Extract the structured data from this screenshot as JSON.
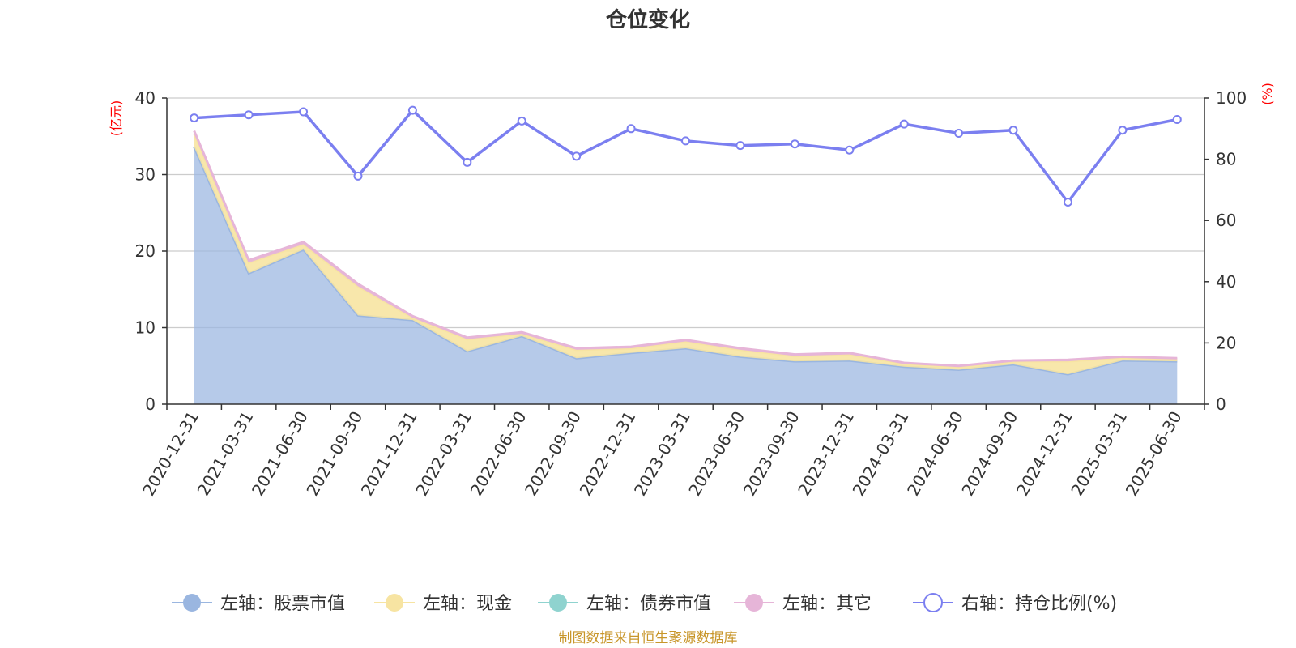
{
  "chart_data": {
    "type": "area",
    "title": "仓位变化",
    "source": "制图数据来自恒生聚源数据库",
    "left_axis": {
      "unit": "(亿元)",
      "ylim": [
        0,
        40
      ],
      "ticks": [
        "0",
        "10",
        "20",
        "30",
        "40"
      ]
    },
    "right_axis": {
      "unit": "(%)",
      "ylim": [
        0,
        100
      ],
      "ticks": [
        "0",
        "20",
        "40",
        "60",
        "80",
        "100"
      ]
    },
    "categories": [
      "2020-12-31",
      "2021-03-31",
      "2021-06-30",
      "2021-09-30",
      "2021-12-31",
      "2022-03-31",
      "2022-06-30",
      "2022-09-30",
      "2022-12-31",
      "2023-03-31",
      "2023-06-30",
      "2023-09-30",
      "2023-12-31",
      "2024-03-31",
      "2024-06-30",
      "2024-09-30",
      "2024-12-31",
      "2025-03-31",
      "2025-06-30"
    ],
    "grid": true,
    "legend_position": "bottom",
    "series": [
      {
        "name": "左轴：股票市值",
        "axis": "left",
        "kind": "area",
        "color": "#9ab6e0",
        "values": [
          33.6,
          17.1,
          20.2,
          11.6,
          11.0,
          6.9,
          8.9,
          6.0,
          6.7,
          7.3,
          6.2,
          5.6,
          5.7,
          4.9,
          4.5,
          5.2,
          3.9,
          5.7,
          5.6
        ]
      },
      {
        "name": "左轴：现金",
        "axis": "left",
        "kind": "area",
        "color": "#f7e4a2",
        "values": [
          1.8,
          1.4,
          0.7,
          3.8,
          0.3,
          1.6,
          0.3,
          1.1,
          0.6,
          0.9,
          0.9,
          0.7,
          0.8,
          0.4,
          0.4,
          0.4,
          1.7,
          0.4,
          0.3
        ]
      },
      {
        "name": "左轴：债券市值",
        "axis": "left",
        "kind": "area",
        "color": "#8fd3cf",
        "values": [
          0,
          0,
          0,
          0,
          0,
          0,
          0,
          0,
          0,
          0,
          0,
          0,
          0,
          0,
          0,
          0,
          0,
          0,
          0
        ]
      },
      {
        "name": "左轴：其它",
        "axis": "left",
        "kind": "area",
        "color": "#e6b5d8",
        "values": [
          0.3,
          0.3,
          0.3,
          0.3,
          0.2,
          0.2,
          0.2,
          0.2,
          0.2,
          0.2,
          0.2,
          0.2,
          0.2,
          0.1,
          0.1,
          0.1,
          0.2,
          0.1,
          0.1
        ]
      },
      {
        "name": "右轴：持仓比例(%)",
        "axis": "right",
        "kind": "line",
        "color": "#7b7ff0",
        "values": [
          93.5,
          94.5,
          95.5,
          74.5,
          96.0,
          79.0,
          92.5,
          81.0,
          90.0,
          86.0,
          84.5,
          85.0,
          83.0,
          91.5,
          88.5,
          89.5,
          66.0,
          89.5,
          93.0
        ]
      }
    ]
  }
}
